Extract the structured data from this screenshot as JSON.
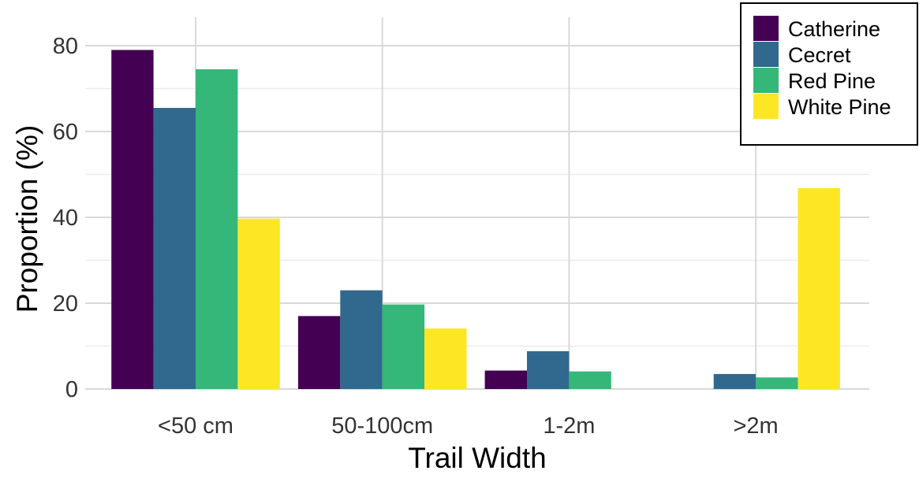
{
  "chart_data": {
    "type": "bar",
    "title": "",
    "xlabel": "Trail Width",
    "ylabel": "Proportion (%)",
    "categories": [
      "<50 cm",
      "50-100cm",
      "1-2m",
      ">2m"
    ],
    "ylim": [
      0,
      85
    ],
    "yticks": [
      0,
      20,
      40,
      60,
      80
    ],
    "grid": true,
    "legend_position": "top-right",
    "series": [
      {
        "name": "Catherine",
        "color": "#440154",
        "values": [
          79,
          17,
          4.3,
          0
        ]
      },
      {
        "name": "Cecret",
        "color": "#31688E",
        "values": [
          65.5,
          23,
          8.8,
          3.5
        ]
      },
      {
        "name": "Red Pine",
        "color": "#35B779",
        "values": [
          74.5,
          19.7,
          4.1,
          2.7
        ]
      },
      {
        "name": "White Pine",
        "color": "#FDE725",
        "values": [
          39.7,
          14.1,
          0,
          46.8
        ]
      }
    ]
  }
}
